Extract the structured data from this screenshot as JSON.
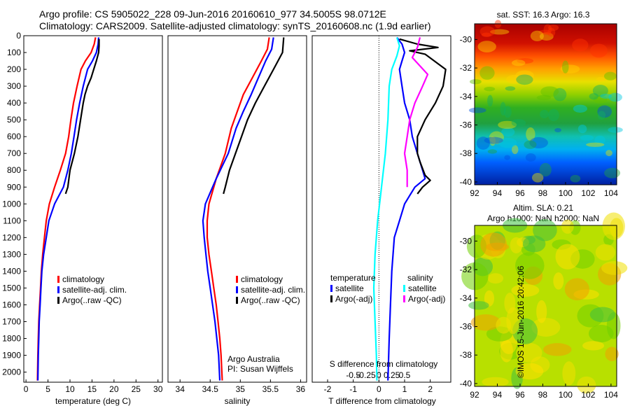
{
  "header": {
    "line1": "Argo profile: CS 5905022_228 09-Jun-2016 20160610_977 34.5005S 98.0712E",
    "line2": "Climatology: CARS2009. Satellite-adjusted climatology: synTS_20160608.nc (1.9d earlier)"
  },
  "credit": "©IMOS 15-Jun-2016 20:42:06",
  "chart_data": [
    {
      "type": "line",
      "panel": "temperature",
      "xlabel": "temperature (deg C)",
      "xlim": [
        -0.5,
        31
      ],
      "xticks": [
        0,
        5,
        10,
        15,
        20,
        25,
        30
      ],
      "ylim": [
        2060,
        0
      ],
      "yticks": [
        0,
        100,
        200,
        300,
        400,
        500,
        600,
        700,
        800,
        900,
        1000,
        1100,
        1200,
        1300,
        1400,
        1500,
        1600,
        1700,
        1800,
        1900,
        2000
      ],
      "legend": {
        "placement": "lower-left",
        "entries": [
          {
            "label": "climatology",
            "color": "#ff0000"
          },
          {
            "label": "satellite-adj. clim.",
            "color": "#0000ff"
          },
          {
            "label": "Argo(..raw -QC)",
            "color": "#000000"
          }
        ]
      },
      "series": [
        {
          "color": "#ff0000",
          "points": [
            [
              15.8,
              10
            ],
            [
              15.5,
              50
            ],
            [
              14.8,
              100
            ],
            [
              13.5,
              150
            ],
            [
              12.5,
              200
            ],
            [
              11.6,
              300
            ],
            [
              10.8,
              400
            ],
            [
              10.2,
              500
            ],
            [
              9.7,
              600
            ],
            [
              9.0,
              700
            ],
            [
              7.8,
              800
            ],
            [
              6.5,
              900
            ],
            [
              5.3,
              1000
            ],
            [
              4.6,
              1100
            ],
            [
              4.2,
              1200
            ],
            [
              3.8,
              1300
            ],
            [
              3.5,
              1400
            ],
            [
              3.3,
              1500
            ],
            [
              3.1,
              1600
            ],
            [
              2.9,
              1700
            ],
            [
              2.8,
              1800
            ],
            [
              2.7,
              1900
            ],
            [
              2.6,
              2050
            ]
          ]
        },
        {
          "color": "#0000ff",
          "points": [
            [
              16.5,
              10
            ],
            [
              16.4,
              50
            ],
            [
              16.0,
              100
            ],
            [
              15.1,
              150
            ],
            [
              14.0,
              200
            ],
            [
              13.0,
              300
            ],
            [
              12.2,
              400
            ],
            [
              11.5,
              500
            ],
            [
              10.9,
              600
            ],
            [
              10.3,
              700
            ],
            [
              9.5,
              800
            ],
            [
              8.5,
              900
            ],
            [
              6.5,
              1000
            ],
            [
              5.2,
              1100
            ],
            [
              4.6,
              1200
            ],
            [
              4.0,
              1300
            ],
            [
              3.6,
              1400
            ],
            [
              3.4,
              1500
            ],
            [
              3.2,
              1600
            ],
            [
              3.0,
              1700
            ],
            [
              2.9,
              1800
            ],
            [
              2.8,
              1900
            ],
            [
              2.7,
              2050
            ]
          ]
        },
        {
          "color": "#000000",
          "points": [
            [
              16.6,
              20
            ],
            [
              16.6,
              60
            ],
            [
              16.5,
              100
            ],
            [
              16.0,
              150
            ],
            [
              15.4,
              200
            ],
            [
              14.8,
              250
            ],
            [
              14.0,
              300
            ],
            [
              13.4,
              350
            ],
            [
              13.0,
              400
            ],
            [
              12.4,
              500
            ],
            [
              11.8,
              600
            ],
            [
              11.0,
              700
            ],
            [
              10.0,
              800
            ],
            [
              9.5,
              900
            ],
            [
              9.0,
              940
            ]
          ]
        }
      ]
    },
    {
      "type": "line",
      "panel": "salinity",
      "xlabel": "salinity",
      "xlim": [
        33.8,
        36.1
      ],
      "xticks": [
        34,
        34.5,
        35,
        35.5,
        36
      ],
      "ylim": [
        2060,
        0
      ],
      "legend": {
        "placement": "lower-right",
        "entries": [
          {
            "label": "climatology",
            "color": "#ff0000"
          },
          {
            "label": "satellite-adj. clim.",
            "color": "#0000ff"
          },
          {
            "label": "Argo(..raw -QC)",
            "color": "#000000"
          }
        ]
      },
      "annotation": [
        "Argo Australia",
        "PI: Susan Wijffels"
      ],
      "series": [
        {
          "color": "#ff0000",
          "points": [
            [
              35.48,
              10
            ],
            [
              35.45,
              80
            ],
            [
              35.35,
              150
            ],
            [
              35.2,
              250
            ],
            [
              35.05,
              350
            ],
            [
              34.95,
              450
            ],
            [
              34.85,
              550
            ],
            [
              34.75,
              700
            ],
            [
              34.6,
              850
            ],
            [
              34.48,
              1000
            ],
            [
              34.45,
              1100
            ],
            [
              34.45,
              1200
            ],
            [
              34.48,
              1300
            ],
            [
              34.52,
              1400
            ],
            [
              34.56,
              1500
            ],
            [
              34.6,
              1600
            ],
            [
              34.63,
              1700
            ],
            [
              34.66,
              1800
            ],
            [
              34.68,
              1900
            ],
            [
              34.7,
              2050
            ]
          ]
        },
        {
          "color": "#0000ff",
          "points": [
            [
              35.55,
              10
            ],
            [
              35.52,
              80
            ],
            [
              35.42,
              150
            ],
            [
              35.3,
              250
            ],
            [
              35.18,
              350
            ],
            [
              35.05,
              450
            ],
            [
              34.93,
              550
            ],
            [
              34.8,
              700
            ],
            [
              34.6,
              850
            ],
            [
              34.42,
              1000
            ],
            [
              34.38,
              1100
            ],
            [
              34.4,
              1200
            ],
            [
              34.43,
              1300
            ],
            [
              34.46,
              1400
            ],
            [
              34.5,
              1500
            ],
            [
              34.54,
              1600
            ],
            [
              34.58,
              1700
            ],
            [
              34.61,
              1800
            ],
            [
              34.64,
              1900
            ],
            [
              34.66,
              2050
            ]
          ]
        },
        {
          "color": "#000000",
          "points": [
            [
              35.72,
              10
            ],
            [
              35.7,
              100
            ],
            [
              35.55,
              200
            ],
            [
              35.4,
              300
            ],
            [
              35.25,
              400
            ],
            [
              35.12,
              500
            ],
            [
              35.02,
              600
            ],
            [
              34.92,
              700
            ],
            [
              34.82,
              800
            ],
            [
              34.75,
              900
            ],
            [
              34.72,
              940
            ]
          ]
        }
      ]
    },
    {
      "type": "line",
      "panel": "difference",
      "xlabel": "T difference from climatology",
      "xlim": [
        -2.6,
        2.8
      ],
      "xticks": [
        -2,
        -1,
        0,
        1,
        2
      ],
      "secondary_xlabel": "S difference from climatology",
      "secondary_xticks": [
        -0.5,
        -0.25,
        0,
        0.25,
        0.5
      ],
      "ylim": [
        2060,
        0
      ],
      "legend": {
        "placement": "middle",
        "groups": [
          "temperature",
          "salinity"
        ],
        "entries": [
          {
            "label": "satellite",
            "color": "#0000ff"
          },
          {
            "label": "Argo(-adj)",
            "color": "#000000"
          },
          {
            "label": "satellite",
            "color": "#00ffff"
          },
          {
            "label": "Argo(-adj)",
            "color": "#ff00ff"
          }
        ]
      },
      "series": [
        {
          "name": "temperature satellite",
          "color": "#0000ff",
          "points": [
            [
              0.7,
              10
            ],
            [
              0.9,
              50
            ],
            [
              1.0,
              100
            ],
            [
              0.9,
              150
            ],
            [
              0.8,
              200
            ],
            [
              0.9,
              300
            ],
            [
              1.0,
              400
            ],
            [
              1.2,
              500
            ],
            [
              1.3,
              600
            ],
            [
              1.5,
              700
            ],
            [
              1.7,
              800
            ],
            [
              1.8,
              850
            ],
            [
              1.4,
              900
            ],
            [
              1.2,
              950
            ],
            [
              1.0,
              1000
            ],
            [
              0.8,
              1100
            ],
            [
              0.6,
              1200
            ],
            [
              0.5,
              1400
            ],
            [
              0.45,
              1600
            ],
            [
              0.4,
              1800
            ],
            [
              0.35,
              2050
            ]
          ]
        },
        {
          "name": "temperature Argo(-adj)",
          "color": "#000000",
          "points": [
            [
              0.8,
              20
            ],
            [
              1.5,
              50
            ],
            [
              2.3,
              70
            ],
            [
              1.2,
              90
            ],
            [
              1.8,
              110
            ],
            [
              2.6,
              200
            ],
            [
              2.5,
              300
            ],
            [
              2.2,
              400
            ],
            [
              1.8,
              500
            ],
            [
              1.5,
              600
            ],
            [
              1.5,
              700
            ],
            [
              1.6,
              750
            ],
            [
              1.8,
              830
            ],
            [
              2.0,
              860
            ],
            [
              1.7,
              900
            ],
            [
              1.5,
              940
            ]
          ]
        },
        {
          "name": "salinity satellite",
          "color": "#00ffff",
          "points": [
            [
              0.7,
              10
            ],
            [
              0.8,
              60
            ],
            [
              0.7,
              120
            ],
            [
              0.5,
              200
            ],
            [
              0.4,
              300
            ],
            [
              0.35,
              500
            ],
            [
              0.25,
              700
            ],
            [
              0.1,
              900
            ],
            [
              -0.05,
              1100
            ],
            [
              -0.15,
              1300
            ],
            [
              -0.2,
              1500
            ],
            [
              -0.15,
              1700
            ],
            [
              -0.1,
              1900
            ],
            [
              -0.08,
              2050
            ]
          ]
        },
        {
          "name": "salinity Argo(-adj)",
          "color": "#ff00ff",
          "points": [
            [
              1.6,
              10
            ],
            [
              1.5,
              70
            ],
            [
              1.3,
              130
            ],
            [
              1.6,
              180
            ],
            [
              1.9,
              230
            ],
            [
              1.7,
              300
            ],
            [
              1.4,
              400
            ],
            [
              1.2,
              500
            ],
            [
              1.1,
              600
            ],
            [
              1.0,
              700
            ],
            [
              1.1,
              800
            ],
            [
              1.1,
              900
            ]
          ]
        }
      ]
    },
    {
      "type": "heatmap",
      "panel": "sst-map",
      "title": "sat. SST: 16.3 Argo: 16.3",
      "xlim": [
        92,
        104.5
      ],
      "ylim": [
        -40.2,
        -28.9
      ],
      "xticks": [
        92,
        94,
        96,
        98,
        100,
        102,
        104
      ],
      "yticks": [
        -30,
        -32,
        -34,
        -36,
        -38,
        -40
      ]
    },
    {
      "type": "heatmap",
      "panel": "sla-map",
      "title": [
        "Altim. SLA: 0.21",
        "Argo h1000: NaN h2000: NaN"
      ],
      "xlim": [
        92,
        104.5
      ],
      "ylim": [
        -40.2,
        -28.9
      ],
      "xticks": [
        92,
        94,
        96,
        98,
        100,
        102,
        104
      ],
      "yticks": [
        -30,
        -32,
        -34,
        -36,
        -38,
        -40
      ]
    }
  ]
}
